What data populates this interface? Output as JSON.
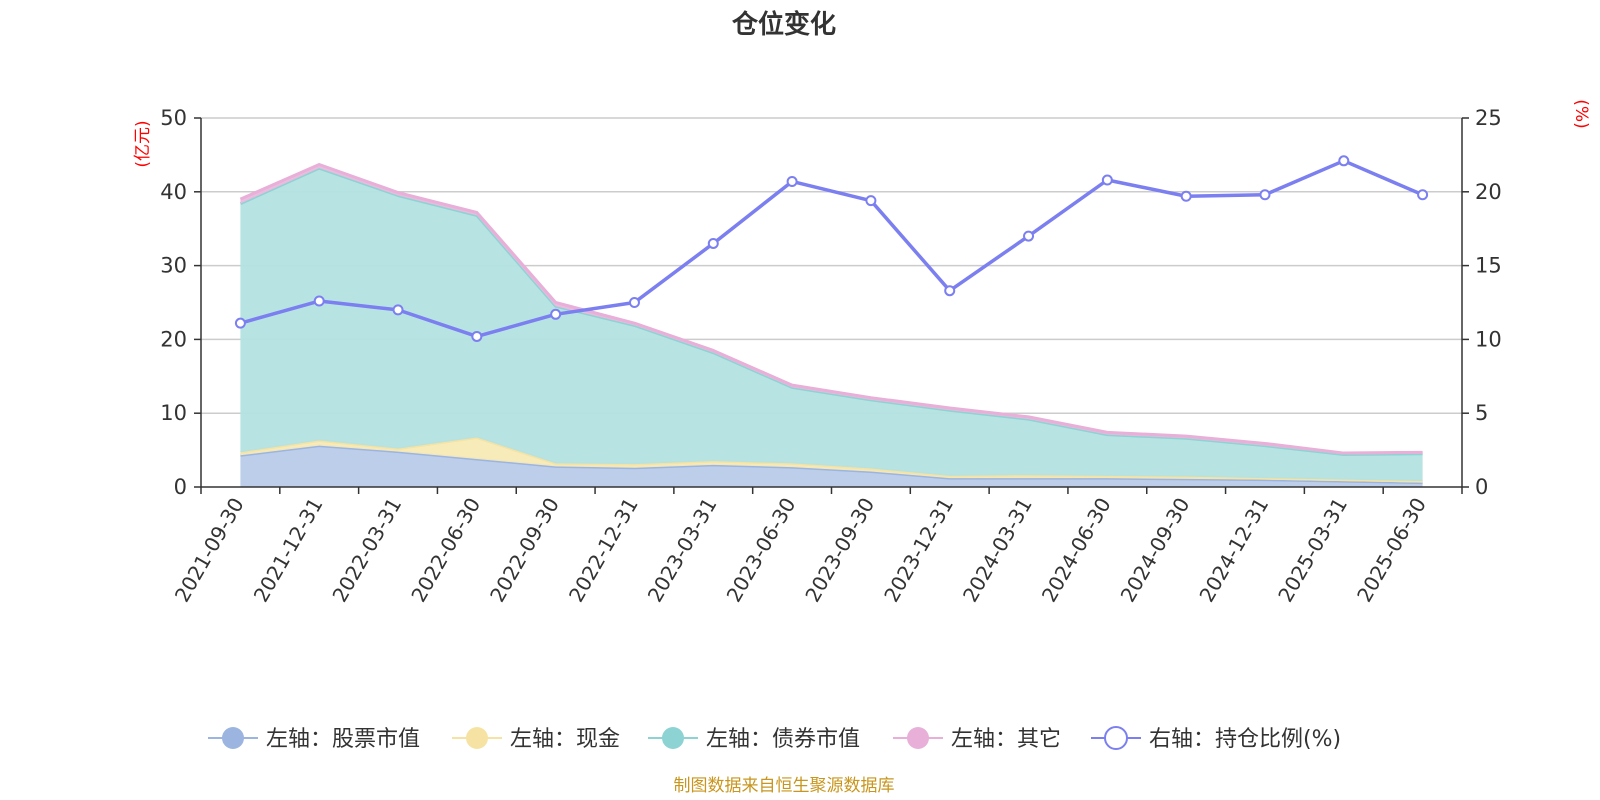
{
  "chart_data": {
    "type": "area",
    "title": "仓位变化",
    "left_axis_unit": "(亿元)",
    "right_axis_unit": "(%)",
    "categories": [
      "2021-09-30",
      "2021-12-31",
      "2022-03-31",
      "2022-06-30",
      "2022-09-30",
      "2022-12-31",
      "2023-03-31",
      "2023-06-30",
      "2023-09-30",
      "2023-12-31",
      "2024-03-31",
      "2024-06-30",
      "2024-09-30",
      "2024-12-31",
      "2025-03-31",
      "2025-06-30"
    ],
    "left_ylim": [
      0,
      50
    ],
    "left_ticks": [
      0,
      10,
      20,
      30,
      40,
      50
    ],
    "right_ylim": [
      0,
      25
    ],
    "right_ticks": [
      0,
      5,
      10,
      15,
      20,
      25
    ],
    "grid": true,
    "legend_position": "bottom",
    "stacked": true,
    "series": [
      {
        "name": "左轴：股票市值",
        "axis": "left",
        "type": "area",
        "color": "#9bb5e0",
        "fill": "#b9cbea",
        "values": [
          4.3,
          5.6,
          4.8,
          3.8,
          2.8,
          2.6,
          3.0,
          2.7,
          2.1,
          1.2,
          1.2,
          1.2,
          1.1,
          1.0,
          0.8,
          0.6
        ]
      },
      {
        "name": "左轴：现金",
        "axis": "left",
        "type": "area",
        "color": "#f6e3a3",
        "fill": "#f8eab6",
        "values": [
          0.4,
          0.7,
          0.4,
          2.9,
          0.4,
          0.5,
          0.5,
          0.5,
          0.4,
          0.3,
          0.4,
          0.3,
          0.3,
          0.2,
          0.2,
          0.2
        ]
      },
      {
        "name": "左轴：债券市值",
        "axis": "left",
        "type": "area",
        "color": "#8dd3d3",
        "fill": "#b4e1e1",
        "values": [
          33.7,
          36.9,
          34.3,
          30.1,
          21.3,
          18.8,
          14.7,
          10.3,
          9.3,
          8.9,
          7.6,
          5.6,
          5.2,
          4.4,
          3.4,
          3.7
        ]
      },
      {
        "name": "左轴：其它",
        "axis": "left",
        "type": "area",
        "color": "#e8afd8",
        "fill": "#eeb9de",
        "values": [
          0.6,
          0.5,
          0.4,
          0.4,
          0.5,
          0.3,
          0.3,
          0.3,
          0.3,
          0.3,
          0.3,
          0.3,
          0.3,
          0.3,
          0.2,
          0.2
        ]
      },
      {
        "name": "右轴：持仓比例(%)",
        "axis": "right",
        "type": "line",
        "color": "#7b7ff0",
        "values": [
          11.1,
          12.6,
          12.0,
          10.2,
          11.7,
          12.5,
          16.5,
          20.7,
          19.4,
          13.3,
          17.0,
          20.8,
          19.7,
          19.8,
          22.1,
          19.8
        ]
      }
    ],
    "footnote": "制图数据来自恒生聚源数据库"
  }
}
